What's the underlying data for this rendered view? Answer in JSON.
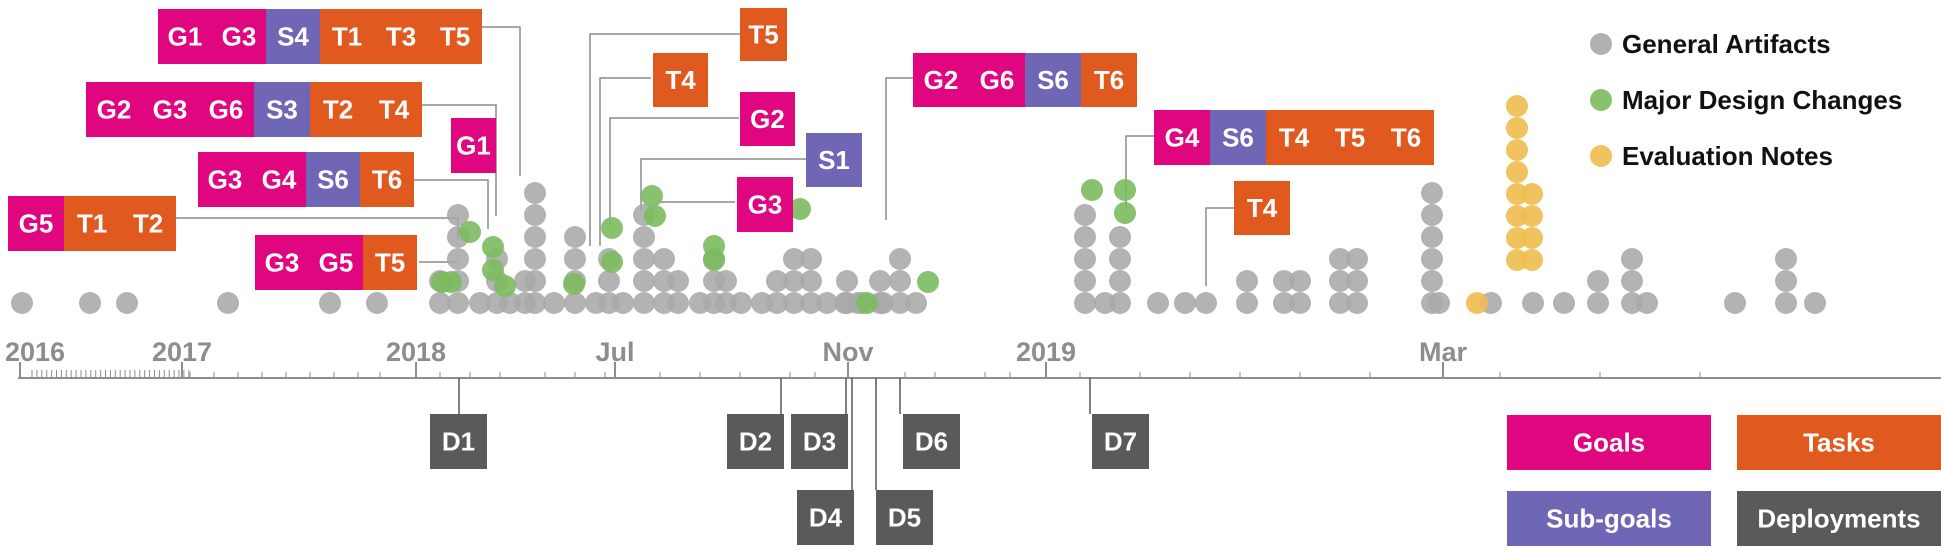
{
  "colors": {
    "goal": "#e0067f",
    "task": "#e05a20",
    "subgoal": "#7066b6",
    "deployment": "#5a5a5a",
    "general": "#a8a8a8",
    "major": "#7bbb5f",
    "evaluation": "#eebc4f",
    "axis": "#8d8d8d"
  },
  "axis": {
    "labels": [
      {
        "text": "2016"
      },
      {
        "text": "2017"
      },
      {
        "text": "2018"
      },
      {
        "text": "Jul"
      },
      {
        "text": "Nov"
      },
      {
        "text": "2019"
      },
      {
        "text": "Mar"
      }
    ]
  },
  "legend": {
    "items": [
      {
        "label": "General Artifacts",
        "color": "general"
      },
      {
        "label": "Major Design Changes",
        "color": "major"
      },
      {
        "label": "Evaluation Notes",
        "color": "evaluation"
      }
    ]
  },
  "key": {
    "goals": "Goals",
    "tasks": "Tasks",
    "subgoals": "Sub-goals",
    "deployments": "Deployments"
  },
  "callouts": [
    {
      "tags": [
        [
          "G1",
          "goal"
        ],
        [
          "G3",
          "goal"
        ],
        [
          "S4",
          "subgoal"
        ],
        [
          "T1",
          "task"
        ],
        [
          "T3",
          "task"
        ],
        [
          "T5",
          "task"
        ]
      ]
    },
    {
      "tags": [
        [
          "G2",
          "goal"
        ],
        [
          "G3",
          "goal"
        ],
        [
          "G6",
          "goal"
        ],
        [
          "S3",
          "subgoal"
        ],
        [
          "T2",
          "task"
        ],
        [
          "T4",
          "task"
        ]
      ]
    },
    {
      "tags": [
        [
          "G1",
          "goal"
        ]
      ]
    },
    {
      "tags": [
        [
          "G3",
          "goal"
        ],
        [
          "G4",
          "goal"
        ],
        [
          "S6",
          "subgoal"
        ],
        [
          "T6",
          "task"
        ]
      ]
    },
    {
      "tags": [
        [
          "G5",
          "goal"
        ],
        [
          "T1",
          "task"
        ],
        [
          "T2",
          "task"
        ]
      ]
    },
    {
      "tags": [
        [
          "G3",
          "goal"
        ],
        [
          "G5",
          "goal"
        ],
        [
          "T5",
          "task"
        ]
      ]
    },
    {
      "tags": [
        [
          "T5",
          "task"
        ]
      ]
    },
    {
      "tags": [
        [
          "T4",
          "task"
        ]
      ]
    },
    {
      "tags": [
        [
          "G2",
          "goal"
        ]
      ]
    },
    {
      "tags": [
        [
          "S1",
          "subgoal"
        ]
      ]
    },
    {
      "tags": [
        [
          "G3",
          "goal"
        ]
      ]
    },
    {
      "tags": [
        [
          "G2",
          "goal"
        ],
        [
          "G6",
          "goal"
        ],
        [
          "S6",
          "subgoal"
        ],
        [
          "T6",
          "task"
        ]
      ]
    },
    {
      "tags": [
        [
          "G4",
          "goal"
        ],
        [
          "S6",
          "subgoal"
        ],
        [
          "T4",
          "task"
        ],
        [
          "T5",
          "task"
        ],
        [
          "T6",
          "task"
        ]
      ]
    },
    {
      "tags": [
        [
          "T4",
          "task"
        ]
      ]
    }
  ],
  "deployments": [
    "D1",
    "D2",
    "D3",
    "D4",
    "D5",
    "D6",
    "D7"
  ]
}
